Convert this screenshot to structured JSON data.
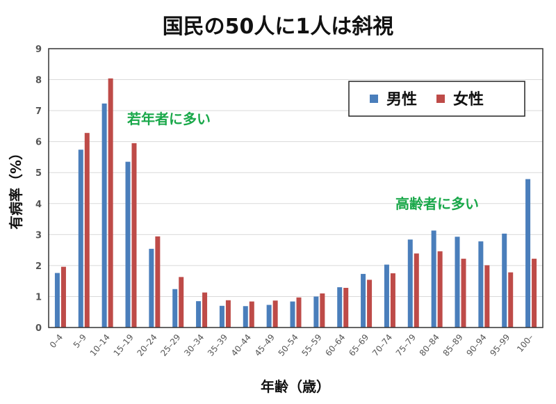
{
  "chart_data": {
    "type": "bar",
    "title": "国民の50人に1人は斜視",
    "xlabel": "年齢（歳）",
    "ylabel": "有病率（%）",
    "ylim": [
      0,
      9
    ],
    "yticks": [
      "0",
      "1",
      "2",
      "3",
      "4",
      "5",
      "6",
      "7",
      "8",
      "9"
    ],
    "grid": true,
    "legend_position": "top-right",
    "categories": [
      "0–4",
      "5–9",
      "10–14",
      "15–19",
      "20–24",
      "25–29",
      "30–34",
      "35–39",
      "40–44",
      "45–49",
      "50–54",
      "55–59",
      "60–64",
      "65–69",
      "70–74",
      "75–79",
      "80–84",
      "85–89",
      "90–94",
      "95–99",
      "100–"
    ],
    "series": [
      {
        "name": "男性",
        "color": "#4a7ebb",
        "values": [
          1.76,
          5.74,
          7.23,
          5.35,
          2.54,
          1.24,
          0.85,
          0.7,
          0.69,
          0.73,
          0.84,
          1.0,
          1.3,
          1.73,
          2.03,
          2.84,
          3.13,
          2.93,
          2.78,
          3.03,
          4.79
        ]
      },
      {
        "name": "女性",
        "color": "#be4b48",
        "values": [
          1.96,
          6.28,
          8.04,
          5.95,
          2.94,
          1.63,
          1.13,
          0.88,
          0.84,
          0.87,
          0.97,
          1.1,
          1.28,
          1.54,
          1.75,
          2.39,
          2.46,
          2.22,
          2.01,
          1.78,
          2.22
        ]
      }
    ],
    "annotations": [
      {
        "text": "若年者に多い",
        "color": "#1aa84a"
      },
      {
        "text": "高齢者に多い",
        "color": "#1aa84a"
      }
    ]
  }
}
